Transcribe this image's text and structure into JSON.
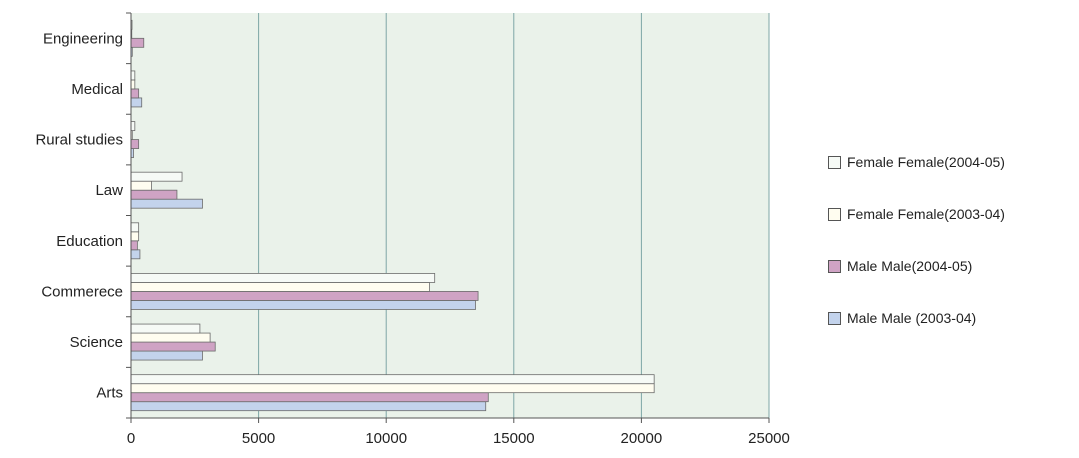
{
  "chart_data": {
    "type": "bar",
    "orientation": "horizontal",
    "categories": [
      "Arts",
      "Science",
      "Commerece",
      "Education",
      "Law",
      "Rural studies",
      "Medical",
      "Engineering"
    ],
    "series": [
      {
        "name": "Male Male (2003-04)",
        "color": "#c3d3ec",
        "values": [
          13900,
          2800,
          13500,
          350,
          2800,
          100,
          420,
          50
        ]
      },
      {
        "name": "Male Male(2004-05)",
        "color": "#cfa3c4",
        "values": [
          14000,
          3300,
          13600,
          250,
          1800,
          300,
          300,
          500
        ]
      },
      {
        "name": "Female Female(2003-04)",
        "color": "#fffdf0",
        "values": [
          20500,
          3100,
          11700,
          300,
          800,
          50,
          150,
          30
        ]
      },
      {
        "name": "Female Female(2004-05)",
        "color": "#f6faf6",
        "values": [
          20500,
          2700,
          11900,
          300,
          2000,
          150,
          150,
          40
        ]
      }
    ],
    "xlim": [
      0,
      25000
    ],
    "xticks": [
      "0",
      "5000",
      "10000",
      "15000",
      "20000",
      "25000"
    ],
    "grid": true,
    "legend_position": "right"
  }
}
